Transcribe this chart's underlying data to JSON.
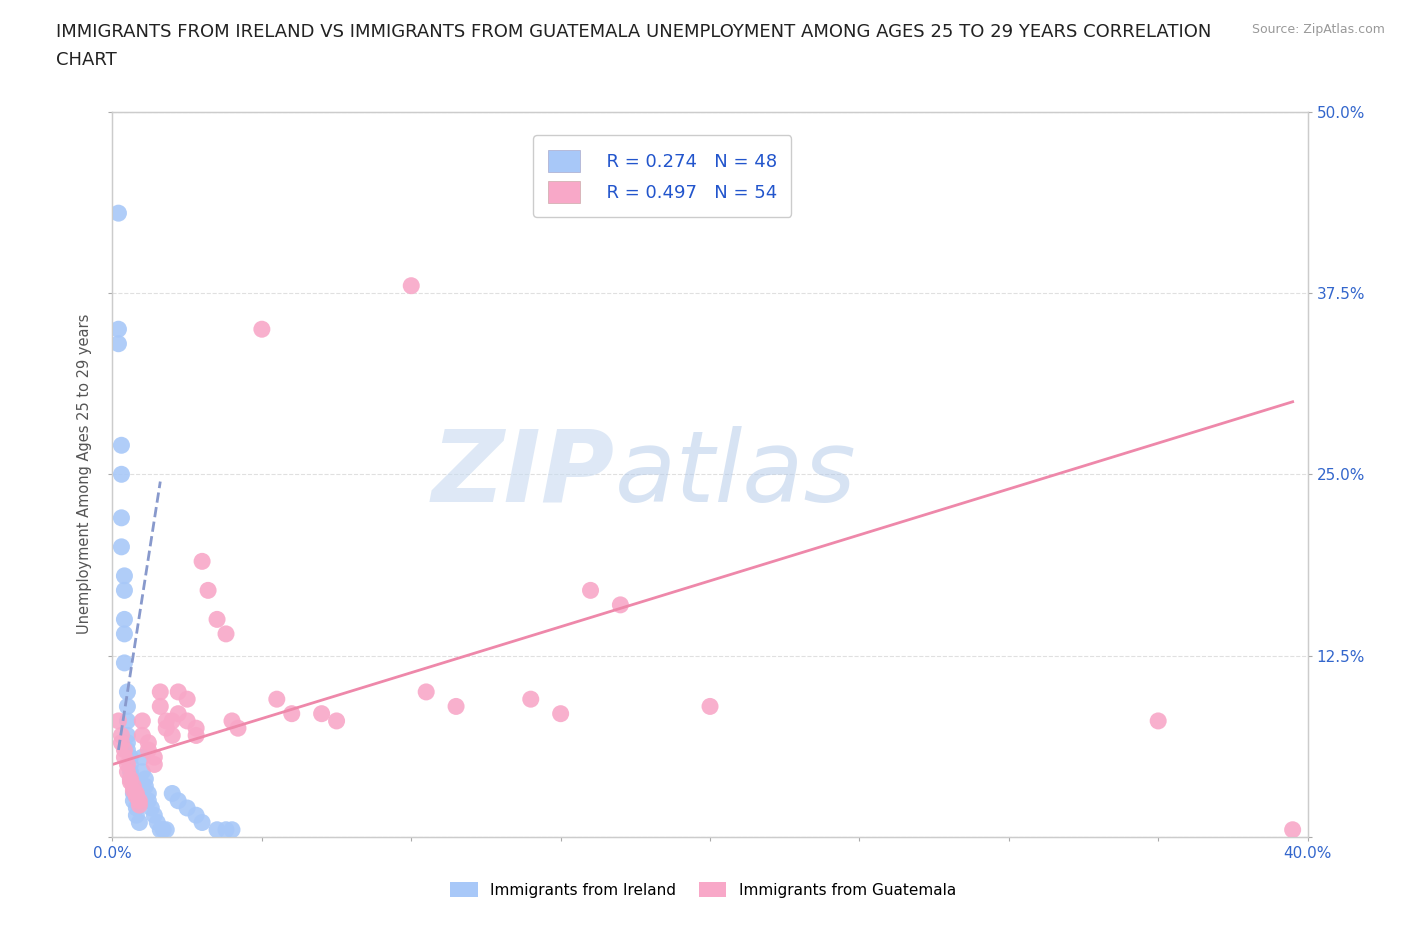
{
  "title": "IMMIGRANTS FROM IRELAND VS IMMIGRANTS FROM GUATEMALA UNEMPLOYMENT AMONG AGES 25 TO 29 YEARS CORRELATION\nCHART",
  "source_text": "Source: ZipAtlas.com",
  "ylabel": "Unemployment Among Ages 25 to 29 years",
  "xlim": [
    0.0,
    0.4
  ],
  "ylim": [
    0.0,
    0.5
  ],
  "xticks": [
    0.0,
    0.05,
    0.1,
    0.15,
    0.2,
    0.25,
    0.3,
    0.35,
    0.4
  ],
  "xticklabels": [
    "0.0%",
    "",
    "",
    "",
    "",
    "",
    "",
    "",
    "40.0%"
  ],
  "yticks": [
    0.0,
    0.125,
    0.25,
    0.375,
    0.5
  ],
  "left_yticklabels": [
    "",
    "",
    "",
    "",
    ""
  ],
  "right_yticklabels": [
    "",
    "12.5%",
    "25.0%",
    "37.5%",
    "50.0%"
  ],
  "watermark": "ZIPatlas",
  "ireland_color": "#a8c8f8",
  "guatemala_color": "#f8a8c8",
  "ireland_line_color": "#6699ee",
  "guatemala_line_color": "#ee88aa",
  "ireland_R": 0.274,
  "ireland_N": 48,
  "guatemala_R": 0.497,
  "guatemala_N": 54,
  "legend_label_ireland": "Immigrants from Ireland",
  "legend_label_guatemala": "Immigrants from Guatemala",
  "ireland_scatter": [
    [
      0.002,
      0.43
    ],
    [
      0.002,
      0.35
    ],
    [
      0.002,
      0.34
    ],
    [
      0.003,
      0.27
    ],
    [
      0.003,
      0.25
    ],
    [
      0.003,
      0.22
    ],
    [
      0.003,
      0.2
    ],
    [
      0.004,
      0.18
    ],
    [
      0.004,
      0.17
    ],
    [
      0.004,
      0.15
    ],
    [
      0.004,
      0.14
    ],
    [
      0.004,
      0.12
    ],
    [
      0.005,
      0.1
    ],
    [
      0.005,
      0.09
    ],
    [
      0.005,
      0.08
    ],
    [
      0.005,
      0.07
    ],
    [
      0.005,
      0.065
    ],
    [
      0.005,
      0.06
    ],
    [
      0.006,
      0.055
    ],
    [
      0.006,
      0.05
    ],
    [
      0.006,
      0.045
    ],
    [
      0.006,
      0.04
    ],
    [
      0.007,
      0.035
    ],
    [
      0.007,
      0.03
    ],
    [
      0.007,
      0.025
    ],
    [
      0.008,
      0.02
    ],
    [
      0.008,
      0.015
    ],
    [
      0.009,
      0.01
    ],
    [
      0.01,
      0.055
    ],
    [
      0.01,
      0.045
    ],
    [
      0.011,
      0.04
    ],
    [
      0.011,
      0.035
    ],
    [
      0.012,
      0.03
    ],
    [
      0.012,
      0.025
    ],
    [
      0.013,
      0.02
    ],
    [
      0.014,
      0.015
    ],
    [
      0.015,
      0.01
    ],
    [
      0.016,
      0.005
    ],
    [
      0.017,
      0.005
    ],
    [
      0.018,
      0.005
    ],
    [
      0.02,
      0.03
    ],
    [
      0.022,
      0.025
    ],
    [
      0.025,
      0.02
    ],
    [
      0.028,
      0.015
    ],
    [
      0.03,
      0.01
    ],
    [
      0.035,
      0.005
    ],
    [
      0.038,
      0.005
    ],
    [
      0.04,
      0.005
    ]
  ],
  "guatemala_scatter": [
    [
      0.002,
      0.08
    ],
    [
      0.003,
      0.07
    ],
    [
      0.003,
      0.065
    ],
    [
      0.004,
      0.06
    ],
    [
      0.004,
      0.055
    ],
    [
      0.005,
      0.05
    ],
    [
      0.005,
      0.045
    ],
    [
      0.006,
      0.04
    ],
    [
      0.006,
      0.038
    ],
    [
      0.007,
      0.035
    ],
    [
      0.007,
      0.032
    ],
    [
      0.008,
      0.03
    ],
    [
      0.008,
      0.028
    ],
    [
      0.009,
      0.025
    ],
    [
      0.009,
      0.022
    ],
    [
      0.01,
      0.08
    ],
    [
      0.01,
      0.07
    ],
    [
      0.012,
      0.065
    ],
    [
      0.012,
      0.06
    ],
    [
      0.014,
      0.055
    ],
    [
      0.014,
      0.05
    ],
    [
      0.016,
      0.1
    ],
    [
      0.016,
      0.09
    ],
    [
      0.018,
      0.08
    ],
    [
      0.018,
      0.075
    ],
    [
      0.02,
      0.08
    ],
    [
      0.02,
      0.07
    ],
    [
      0.022,
      0.1
    ],
    [
      0.022,
      0.085
    ],
    [
      0.025,
      0.095
    ],
    [
      0.025,
      0.08
    ],
    [
      0.028,
      0.075
    ],
    [
      0.028,
      0.07
    ],
    [
      0.03,
      0.19
    ],
    [
      0.032,
      0.17
    ],
    [
      0.035,
      0.15
    ],
    [
      0.038,
      0.14
    ],
    [
      0.04,
      0.08
    ],
    [
      0.042,
      0.075
    ],
    [
      0.05,
      0.35
    ],
    [
      0.055,
      0.095
    ],
    [
      0.06,
      0.085
    ],
    [
      0.07,
      0.085
    ],
    [
      0.075,
      0.08
    ],
    [
      0.1,
      0.38
    ],
    [
      0.105,
      0.1
    ],
    [
      0.115,
      0.09
    ],
    [
      0.14,
      0.095
    ],
    [
      0.15,
      0.085
    ],
    [
      0.16,
      0.17
    ],
    [
      0.17,
      0.16
    ],
    [
      0.2,
      0.09
    ],
    [
      0.35,
      0.08
    ],
    [
      0.395,
      0.005
    ]
  ],
  "ireland_trendline": [
    [
      0.002,
      0.06
    ],
    [
      0.016,
      0.245
    ]
  ],
  "guatemala_trendline": [
    [
      0.0,
      0.05
    ],
    [
      0.395,
      0.3
    ]
  ],
  "background_color": "#ffffff",
  "grid_color": "#e0e0e0",
  "tick_color": "#aaaaaa",
  "axis_color": "#cccccc",
  "title_fontsize": 13,
  "ylabel_fontsize": 10.5,
  "tick_fontsize": 11,
  "legend_fontsize": 13
}
